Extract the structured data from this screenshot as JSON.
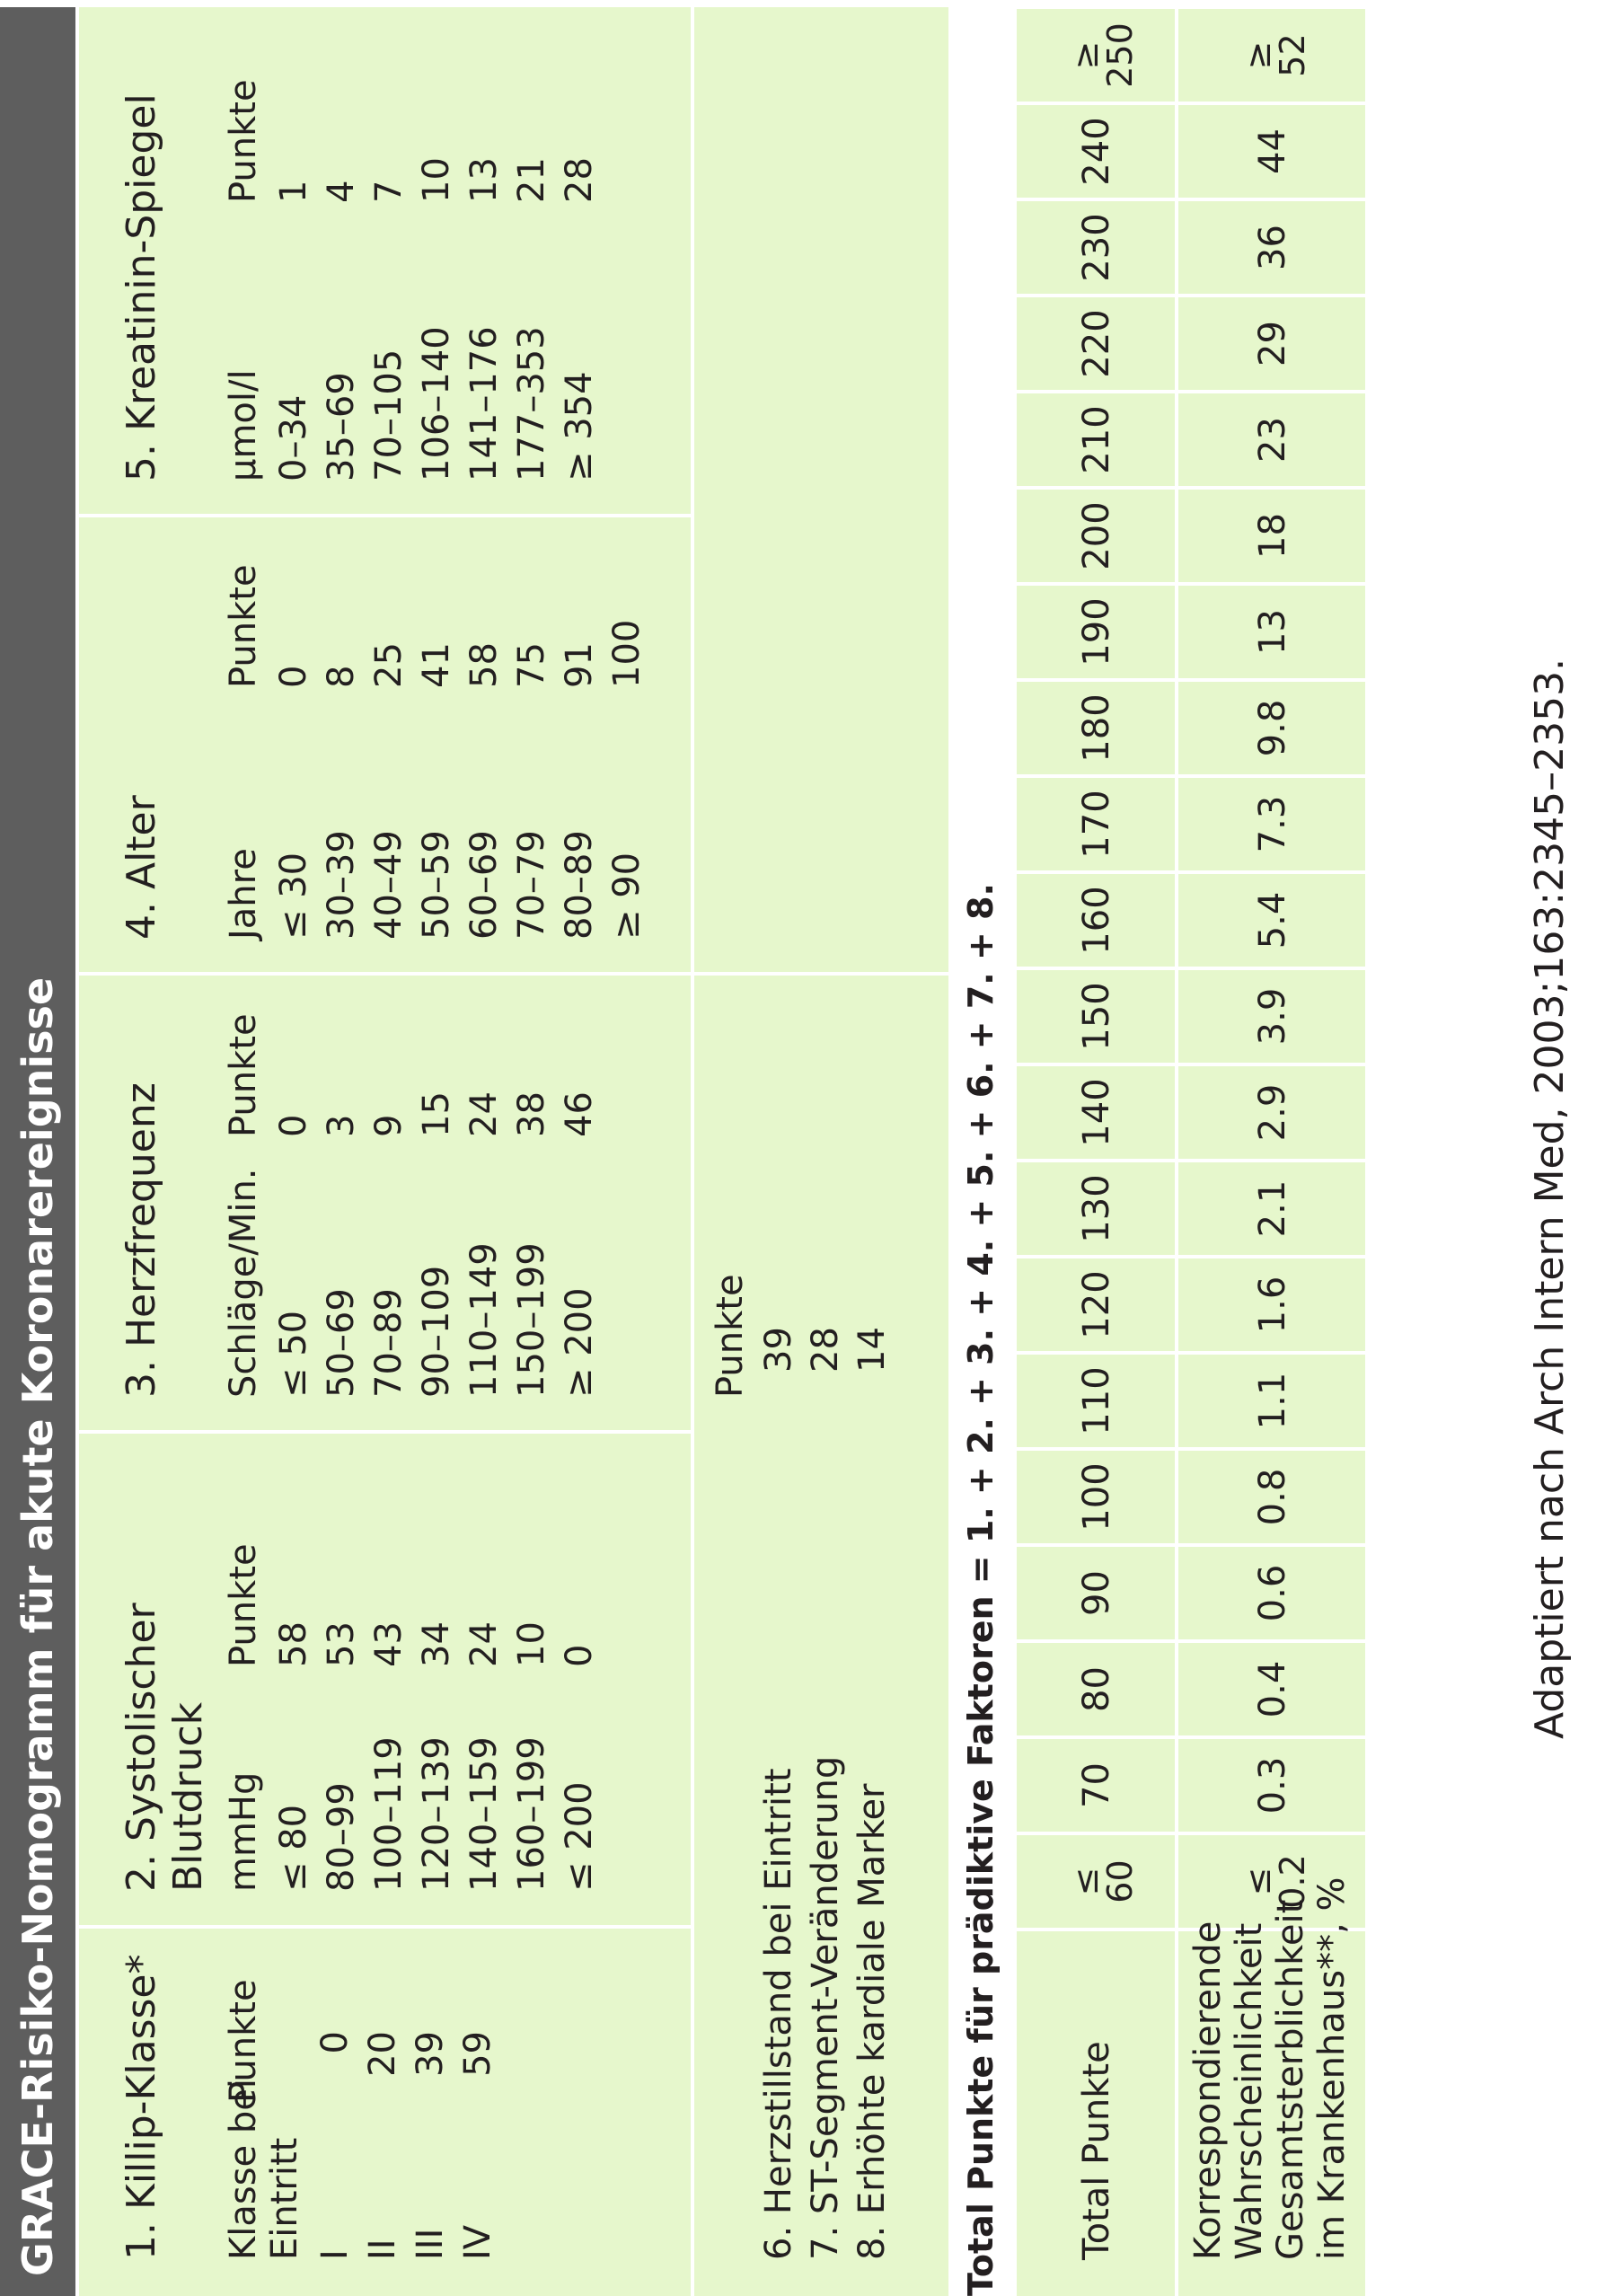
{
  "title": "GRACE-Risiko-Nomogramm für akute Koronarereignisse",
  "factors": [
    {
      "heading": "1. Killip-Klasse*",
      "col1": [
        "Klasse bei",
        "Eintritt"
      ],
      "col2": "Punkte",
      "rows": [
        [
          "I",
          "0"
        ],
        [
          "II",
          "20"
        ],
        [
          "III",
          "39"
        ],
        [
          "IV",
          "59"
        ]
      ]
    },
    {
      "heading": [
        "2. Systolischer",
        "Blutdruck"
      ],
      "col1": "mmHg",
      "col2": "Punkte",
      "rows": [
        [
          "≤ 80",
          "58"
        ],
        [
          "80–99",
          "53"
        ],
        [
          "100–119",
          "43"
        ],
        [
          "120–139",
          "34"
        ],
        [
          "140–159",
          "24"
        ],
        [
          "160–199",
          "10"
        ],
        [
          "≤ 200",
          "0"
        ]
      ]
    },
    {
      "heading": "3. Herzfrequenz",
      "col1": "Schläge/Min.",
      "col2": "Punkte",
      "rows": [
        [
          "≤ 50",
          "0"
        ],
        [
          "50–69",
          "3"
        ],
        [
          "70–89",
          "9"
        ],
        [
          "90–109",
          "15"
        ],
        [
          "110–149",
          "24"
        ],
        [
          "150–199",
          "38"
        ],
        [
          "≥ 200",
          "46"
        ]
      ]
    },
    {
      "heading": "4. Alter",
      "col1": "Jahre",
      "col2": "Punkte",
      "rows": [
        [
          "≤ 30",
          "0"
        ],
        [
          "30–39",
          "8"
        ],
        [
          "40–49",
          "25"
        ],
        [
          "50–59",
          "41"
        ],
        [
          "60–69",
          "58"
        ],
        [
          "70–79",
          "75"
        ],
        [
          "80–89",
          "91"
        ],
        [
          "≥ 90",
          "100"
        ]
      ]
    },
    {
      "heading": "5. Kreatinin-Spiegel",
      "col1": "µmol/l",
      "col2": "Punkte",
      "rows": [
        [
          "0–34",
          "1"
        ],
        [
          "35–69",
          "4"
        ],
        [
          "70–105",
          "7"
        ],
        [
          "106–140",
          "10"
        ],
        [
          "141–176",
          "13"
        ],
        [
          "177–353",
          "21"
        ],
        [
          "≥ 354",
          "28"
        ]
      ]
    }
  ],
  "other_factors": {
    "points_header": "Punkte",
    "rows": [
      [
        "6. Herzstillstand bei Eintritt",
        "39"
      ],
      [
        "7. ST-Segment-Veränderung",
        "28"
      ],
      [
        "8. Erhöhte kardiale Marker",
        "14"
      ]
    ]
  },
  "total_heading": "Total Punkte für prädiktive Faktoren = 1. + 2. + 3. + 4. + 5. + 6. + 7. + 8.",
  "total_table": {
    "row1_label": "Total Punkte",
    "row2_label": [
      "Korrespondierende",
      "Wahrscheinlichkeit",
      "Gesamtsterblichkeit",
      "im Krankenhaus**, %"
    ],
    "points": [
      "≤|60",
      "70",
      "80",
      "90",
      "100",
      "110",
      "120",
      "130",
      "140",
      "150",
      "160",
      "170",
      "180",
      "190",
      "200",
      "210",
      "220",
      "230",
      "240",
      "≥|250"
    ],
    "mortality": [
      "≤|0.2",
      "0.3",
      "0.4",
      "0.6",
      "0.8",
      "1.1",
      "1.6",
      "2.1",
      "2.9",
      "3.9",
      "5.4",
      "7.3",
      "9.8",
      "13",
      "18",
      "23",
      "29",
      "36",
      "44",
      "≥|52"
    ]
  },
  "footer": "Adaptiert nach Arch Intern Med, 2003;163:2345–2353."
}
